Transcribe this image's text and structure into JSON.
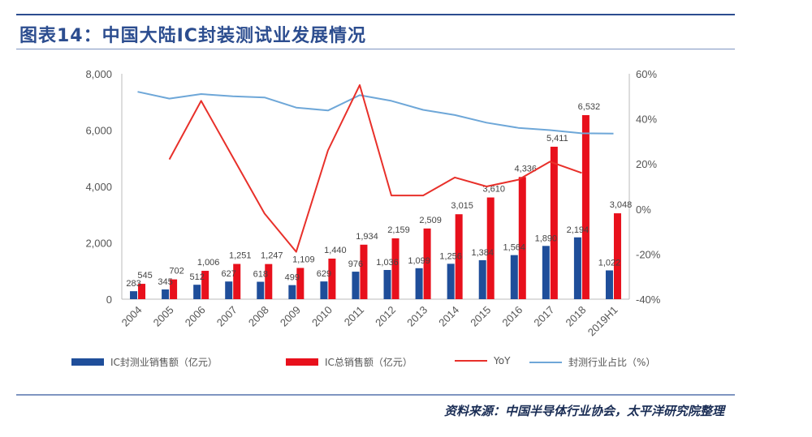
{
  "header": {
    "title": "图表14：中国大陆IC封装测试业发展情况"
  },
  "footer": {
    "source": "资料来源：中国半导体行业协会，太平洋研究院整理"
  },
  "colors": {
    "bar_packaging": "#1f4e9a",
    "bar_total": "#e8101c",
    "line_yoy": "#e8302a",
    "line_share": "#6ea7d8"
  },
  "chart_data": {
    "type": "bar",
    "categories": [
      "2004",
      "2005",
      "2006",
      "2007",
      "2008",
      "2009",
      "2010",
      "2011",
      "2012",
      "2013",
      "2014",
      "2015",
      "2016",
      "2017",
      "2018",
      "2019H1"
    ],
    "y_left": {
      "ylim": [
        0,
        8000
      ],
      "ticks": [
        "0",
        "2,000",
        "4,000",
        "6,000",
        "8,000"
      ]
    },
    "y_right": {
      "ylim": [
        -40,
        60
      ],
      "ticks": [
        "-40%",
        "-20%",
        "0%",
        "20%",
        "40%",
        "60%"
      ]
    },
    "series": [
      {
        "name": "IC封测业销售额（亿元）",
        "kind": "bar",
        "axis": "left",
        "values": [
          283,
          345,
          512,
          627,
          618,
          499,
          629,
          976,
          1036,
          1099,
          1256,
          1384,
          1564,
          1890,
          2194,
          1022
        ],
        "labels": [
          "283",
          "345",
          "512",
          "627",
          "618",
          "499",
          "629",
          "976",
          "1,036",
          "1,099",
          "1,256",
          "1,384",
          "1,564",
          "1,890",
          "2,194",
          "1,022"
        ]
      },
      {
        "name": "IC总销售额（亿元）",
        "kind": "bar",
        "axis": "left",
        "values": [
          545,
          702,
          1006,
          1251,
          1247,
          1109,
          1440,
          1934,
          2159,
          2509,
          3015,
          3610,
          4336,
          5411,
          6532,
          3048
        ],
        "labels": [
          "545",
          "702",
          "1,006",
          "1,251",
          "1,247",
          "1,109",
          "1,440",
          "1,934",
          "2,159",
          "2,509",
          "3,015",
          "3,610",
          "4,336",
          "5,411",
          "6,532",
          "3,048"
        ]
      },
      {
        "name": "YoY",
        "kind": "line",
        "axis": "right",
        "values": [
          null,
          22,
          48,
          23,
          -2,
          -19,
          26,
          55,
          6,
          6,
          14,
          10,
          13,
          21,
          16,
          null
        ]
      },
      {
        "name": "封测行业占比（%）",
        "kind": "line",
        "axis": "right",
        "values": [
          52,
          49,
          51,
          50,
          49.5,
          45,
          43.7,
          50.5,
          48,
          44,
          41.7,
          38.3,
          36,
          35,
          33.6,
          33.5
        ]
      }
    ],
    "legend_position": "bottom",
    "grid": false
  }
}
